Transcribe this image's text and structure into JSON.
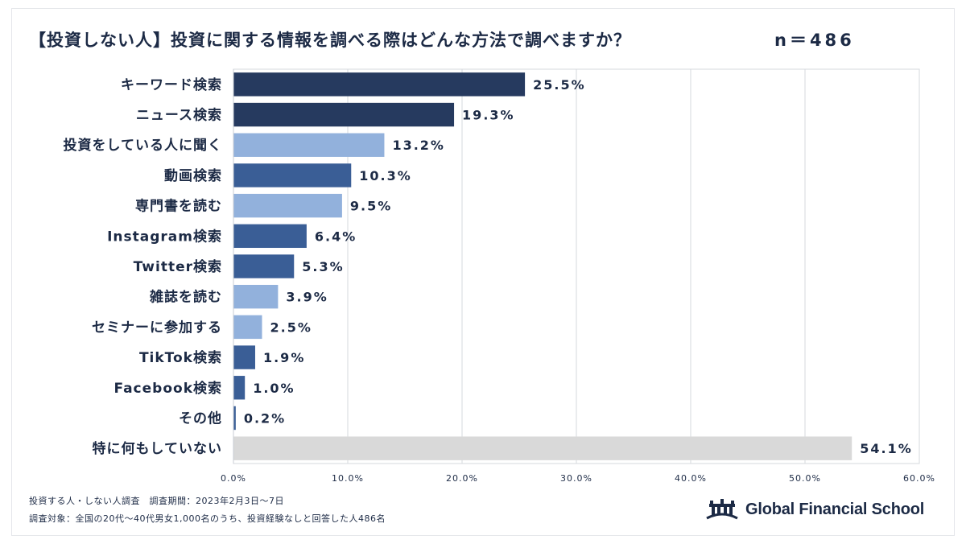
{
  "title": "【投資しない人】投資に関する情報を調べる際はどんな方法で調べますか？",
  "sample_size": "n＝486",
  "footer": {
    "note1": "投資する人・しない人調査　調査期間：2023年2月3日〜7日",
    "note2": "調査対象：全国の20代〜40代男女1,000名のうち、投資経験なしと回答した人486名"
  },
  "logo": {
    "text": "Global Financial School",
    "icon": "school-building-icon"
  },
  "colors": {
    "dark": "#263a5f",
    "medium": "#3a5e96",
    "light": "#92b1dc",
    "gray": "#d9d9d9"
  },
  "chart_data": {
    "type": "bar",
    "orientation": "horizontal",
    "categories": [
      "キーワード検索",
      "ニュース検索",
      "投資をしている人に聞く",
      "動画検索",
      "専門書を読む",
      "Instagram検索",
      "Twitter検索",
      "雑誌を読む",
      "セミナーに参加する",
      "TikTok検索",
      "Facebook検索",
      "その他",
      "特に何もしていない"
    ],
    "values": [
      25.5,
      19.3,
      13.2,
      10.3,
      9.5,
      6.4,
      5.3,
      3.9,
      2.5,
      1.9,
      1.0,
      0.2,
      54.1
    ],
    "value_labels": [
      "25.5%",
      "19.3%",
      "13.2%",
      "10.3%",
      "9.5%",
      "6.4%",
      "5.3%",
      "3.9%",
      "2.5%",
      "1.9%",
      "1.0%",
      "0.2%",
      "54.1%"
    ],
    "bar_colors": [
      "dark",
      "dark",
      "light",
      "medium",
      "light",
      "medium",
      "medium",
      "light",
      "light",
      "medium",
      "medium",
      "medium",
      "gray"
    ],
    "xlim": [
      0,
      60
    ],
    "xticks": [
      0,
      10,
      20,
      30,
      40,
      50,
      60
    ],
    "xtick_labels": [
      "0.0%",
      "10.0%",
      "20.0%",
      "30.0%",
      "40.0%",
      "50.0%",
      "60.0%"
    ],
    "grid": true
  }
}
